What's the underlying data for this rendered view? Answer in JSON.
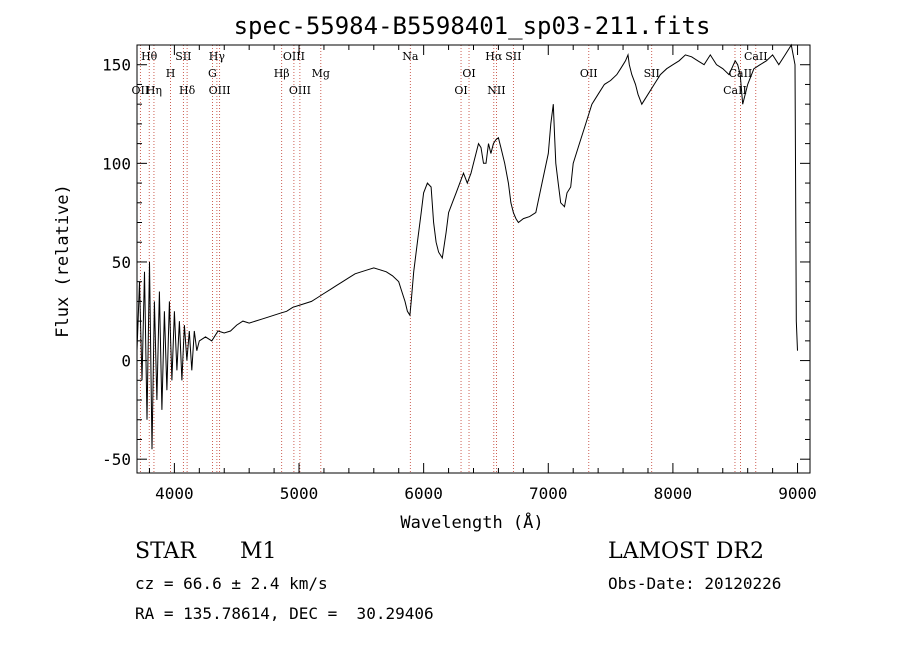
{
  "chart_data": {
    "type": "line",
    "title": "spec-55984-B5598401_sp03-211.fits",
    "xlabel": "Wavelength (Å)",
    "ylabel": "Flux (relative)",
    "xlim": [
      3700,
      9100
    ],
    "ylim": [
      -57,
      160
    ],
    "xticks": [
      4000,
      5000,
      6000,
      7000,
      8000,
      9000
    ],
    "yticks": [
      -50,
      0,
      50,
      100,
      150
    ],
    "grid": false,
    "series": [
      {
        "color": "#000000",
        "x": [
          3700,
          3720,
          3740,
          3760,
          3780,
          3800,
          3820,
          3840,
          3860,
          3880,
          3900,
          3920,
          3940,
          3960,
          3980,
          4000,
          4020,
          4040,
          4060,
          4080,
          4100,
          4120,
          4140,
          4160,
          4180,
          4200,
          4250,
          4300,
          4350,
          4400,
          4450,
          4500,
          4550,
          4600,
          4650,
          4700,
          4750,
          4800,
          4850,
          4900,
          4950,
          5000,
          5050,
          5100,
          5150,
          5200,
          5250,
          5300,
          5350,
          5400,
          5450,
          5500,
          5550,
          5600,
          5650,
          5700,
          5750,
          5800,
          5820,
          5850,
          5870,
          5890,
          5900,
          5920,
          5950,
          5980,
          6000,
          6030,
          6060,
          6080,
          6100,
          6120,
          6150,
          6180,
          6200,
          6230,
          6260,
          6290,
          6320,
          6350,
          6380,
          6400,
          6420,
          6440,
          6460,
          6480,
          6500,
          6520,
          6540,
          6560,
          6580,
          6600,
          6620,
          6650,
          6680,
          6700,
          6720,
          6740,
          6760,
          6800,
          6850,
          6900,
          6950,
          7000,
          7020,
          7040,
          7050,
          7060,
          7080,
          7100,
          7130,
          7150,
          7180,
          7200,
          7250,
          7300,
          7350,
          7400,
          7450,
          7500,
          7550,
          7580,
          7600,
          7620,
          7640,
          7650,
          7670,
          7700,
          7720,
          7750,
          7800,
          7850,
          7900,
          7950,
          8000,
          8050,
          8100,
          8150,
          8200,
          8250,
          8300,
          8350,
          8400,
          8450,
          8500,
          8520,
          8540,
          8560,
          8600,
          8650,
          8700,
          8750,
          8800,
          8850,
          8900,
          8950,
          8980,
          8990,
          9000
        ],
        "y": [
          5,
          40,
          -10,
          45,
          -30,
          50,
          -45,
          30,
          -20,
          35,
          -25,
          25,
          -15,
          30,
          -10,
          25,
          -5,
          20,
          -10,
          18,
          0,
          15,
          -5,
          15,
          5,
          10,
          12,
          10,
          15,
          14,
          15,
          18,
          20,
          19,
          20,
          21,
          22,
          23,
          24,
          25,
          27,
          28,
          29,
          30,
          32,
          34,
          36,
          38,
          40,
          42,
          44,
          45,
          46,
          47,
          46,
          45,
          43,
          40,
          36,
          30,
          25,
          23,
          30,
          45,
          60,
          75,
          85,
          90,
          88,
          70,
          60,
          55,
          52,
          65,
          75,
          80,
          85,
          90,
          95,
          90,
          95,
          100,
          105,
          110,
          108,
          100,
          100,
          110,
          105,
          110,
          112,
          113,
          108,
          100,
          90,
          80,
          75,
          72,
          70,
          72,
          73,
          75,
          90,
          105,
          120,
          130,
          115,
          100,
          90,
          80,
          78,
          85,
          88,
          100,
          110,
          120,
          130,
          135,
          140,
          142,
          145,
          148,
          150,
          152,
          155,
          150,
          145,
          140,
          135,
          130,
          135,
          140,
          145,
          148,
          150,
          152,
          155,
          154,
          152,
          150,
          155,
          150,
          148,
          145,
          152,
          150,
          145,
          130,
          140,
          148,
          150,
          152,
          155,
          150,
          155,
          160,
          150,
          20,
          5
        ]
      }
    ],
    "annotations": [
      {
        "label": "Hθ",
        "x": 3798,
        "row": 0
      },
      {
        "label": "OII",
        "x": 3727,
        "row": 2
      },
      {
        "label": "Hη",
        "x": 3836,
        "row": 2
      },
      {
        "label": "H",
        "x": 3969,
        "row": 1
      },
      {
        "label": "SII",
        "x": 4072,
        "row": 0
      },
      {
        "label": "Hδ",
        "x": 4102,
        "row": 2
      },
      {
        "label": "Hγ",
        "x": 4341,
        "row": 0
      },
      {
        "label": "G",
        "x": 4305,
        "row": 1
      },
      {
        "label": "OIII",
        "x": 4363,
        "row": 2
      },
      {
        "label": "OIII",
        "x": 4959,
        "row": 0
      },
      {
        "label": "Hβ",
        "x": 4861,
        "row": 1
      },
      {
        "label": "OIII",
        "x": 5007,
        "row": 2
      },
      {
        "label": "Mg",
        "x": 5175,
        "row": 1
      },
      {
        "label": "Na",
        "x": 5893,
        "row": 0
      },
      {
        "label": "OI",
        "x": 6364,
        "row": 1
      },
      {
        "label": "OI",
        "x": 6300,
        "row": 2
      },
      {
        "label": "Hα",
        "x": 6563,
        "row": 0
      },
      {
        "label": "SII",
        "x": 6720,
        "row": 0
      },
      {
        "label": "NII",
        "x": 6584,
        "row": 2
      },
      {
        "label": "OII",
        "x": 7325,
        "row": 1
      },
      {
        "label": "SII",
        "x": 7830,
        "row": 1
      },
      {
        "label": "CaII",
        "x": 8665,
        "row": 0
      },
      {
        "label": "CaII",
        "x": 8542,
        "row": 1
      },
      {
        "label": "CaII",
        "x": 8498,
        "row": 2
      }
    ]
  },
  "info": {
    "object_type": "STAR",
    "subclass": "M1",
    "survey": "LAMOST DR2",
    "cz": "cz = 66.6 ± 2.4 km/s",
    "obs_date": "Obs-Date: 20120226",
    "coords": "RA = 135.78614, DEC =  30.29406"
  }
}
